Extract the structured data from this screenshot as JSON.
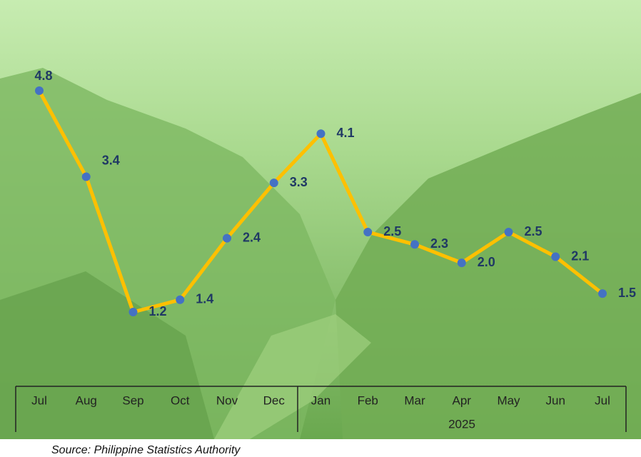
{
  "chart_data": {
    "type": "line",
    "categories": [
      "Jul",
      "Aug",
      "Sep",
      "Oct",
      "Nov",
      "Dec",
      "Jan",
      "Feb",
      "Mar",
      "Apr",
      "May",
      "Jun",
      "Jul"
    ],
    "group_label": "2025",
    "series": [
      {
        "color": "#FFC000",
        "marker_color": "#4472C4",
        "values": [
          4.8,
          3.4,
          1.2,
          1.4,
          2.4,
          3.3,
          4.1,
          2.5,
          2.3,
          2.0,
          2.5,
          2.1,
          1.5
        ],
        "value_labels": [
          "4.8",
          "3.4",
          "1.2",
          "1.4",
          "2.4",
          "3.3",
          "4.1",
          "2.5",
          "2.3",
          "2.0",
          "2.5",
          "2.1",
          "1.5"
        ]
      }
    ],
    "source": "Source: Philippine Statistics Authority"
  }
}
